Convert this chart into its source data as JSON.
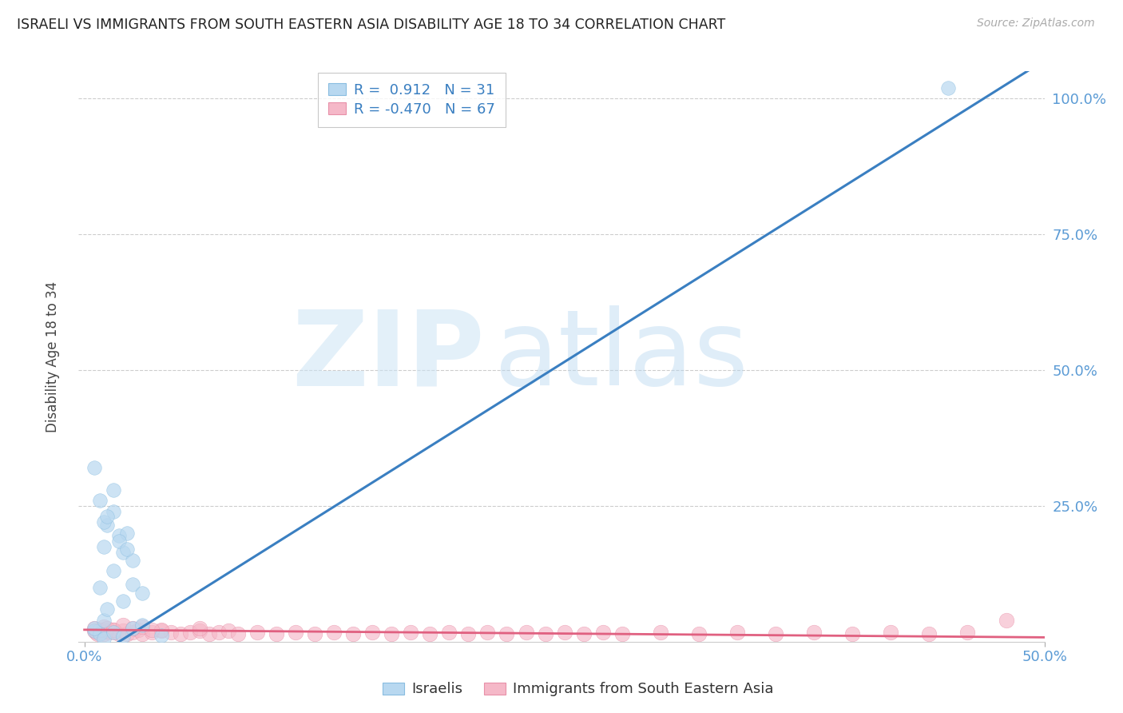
{
  "title": "ISRAELI VS IMMIGRANTS FROM SOUTH EASTERN ASIA DISABILITY AGE 18 TO 34 CORRELATION CHART",
  "source": "Source: ZipAtlas.com",
  "xlim": [
    0.0,
    0.5
  ],
  "ylim": [
    0.0,
    1.05
  ],
  "watermark_top": "ZIP",
  "watermark_bot": "atlas",
  "legend_items": [
    {
      "label": "Israelis",
      "color": "#b8d8f0",
      "edge": "#89bde0",
      "R": 0.912,
      "N": 31
    },
    {
      "label": "Immigrants from South Eastern Asia",
      "color": "#f5b8c8",
      "edge": "#e890a8",
      "R": -0.47,
      "N": 67
    }
  ],
  "israeli_x": [
    0.005,
    0.008,
    0.01,
    0.012,
    0.015,
    0.018,
    0.02,
    0.022,
    0.025,
    0.005,
    0.008,
    0.01,
    0.012,
    0.015,
    0.018,
    0.02,
    0.025,
    0.03,
    0.01,
    0.015,
    0.02,
    0.025,
    0.03,
    0.04,
    0.01,
    0.005,
    0.015,
    0.008,
    0.012,
    0.45,
    0.022
  ],
  "israeli_y": [
    0.02,
    0.015,
    0.175,
    0.215,
    0.24,
    0.195,
    0.165,
    0.2,
    0.15,
    0.025,
    0.1,
    0.04,
    0.06,
    0.13,
    0.185,
    0.075,
    0.105,
    0.09,
    0.005,
    0.018,
    0.01,
    0.025,
    0.03,
    0.012,
    0.22,
    0.32,
    0.28,
    0.26,
    0.23,
    1.02,
    0.17
  ],
  "immigrant_x": [
    0.005,
    0.006,
    0.007,
    0.008,
    0.009,
    0.01,
    0.012,
    0.013,
    0.015,
    0.016,
    0.018,
    0.02,
    0.022,
    0.025,
    0.028,
    0.03,
    0.035,
    0.04,
    0.045,
    0.05,
    0.055,
    0.06,
    0.065,
    0.07,
    0.075,
    0.08,
    0.09,
    0.1,
    0.11,
    0.12,
    0.13,
    0.14,
    0.15,
    0.16,
    0.17,
    0.18,
    0.19,
    0.2,
    0.21,
    0.22,
    0.23,
    0.24,
    0.25,
    0.26,
    0.27,
    0.28,
    0.3,
    0.32,
    0.34,
    0.36,
    0.38,
    0.4,
    0.42,
    0.44,
    0.46,
    0.005,
    0.008,
    0.01,
    0.012,
    0.015,
    0.02,
    0.025,
    0.03,
    0.04,
    0.06,
    0.48,
    0.035
  ],
  "immigrant_y": [
    0.02,
    0.018,
    0.015,
    0.022,
    0.018,
    0.015,
    0.02,
    0.018,
    0.022,
    0.018,
    0.015,
    0.02,
    0.015,
    0.018,
    0.022,
    0.015,
    0.018,
    0.02,
    0.018,
    0.015,
    0.018,
    0.02,
    0.015,
    0.018,
    0.02,
    0.015,
    0.018,
    0.015,
    0.018,
    0.015,
    0.018,
    0.015,
    0.018,
    0.015,
    0.018,
    0.015,
    0.018,
    0.015,
    0.018,
    0.015,
    0.018,
    0.015,
    0.018,
    0.015,
    0.018,
    0.015,
    0.018,
    0.015,
    0.018,
    0.015,
    0.018,
    0.015,
    0.018,
    0.015,
    0.018,
    0.025,
    0.022,
    0.028,
    0.025,
    0.022,
    0.03,
    0.025,
    0.028,
    0.022,
    0.025,
    0.04,
    0.022
  ],
  "blue_line_x": [
    0.0,
    0.5
  ],
  "blue_line_y": [
    -0.04,
    1.07
  ],
  "pink_line_x": [
    0.0,
    0.5
  ],
  "pink_line_y": [
    0.022,
    0.008
  ],
  "blue_line_color": "#3a7fc1",
  "pink_line_color": "#e06080",
  "grid_color": "#c8c8c8",
  "background_color": "#ffffff",
  "title_color": "#222222",
  "tick_color": "#5b9bd5",
  "ylabel": "Disability Age 18 to 34",
  "yticks": [
    0.25,
    0.5,
    0.75,
    1.0
  ],
  "ytick_labels": [
    "25.0%",
    "50.0%",
    "75.0%",
    "100.0%"
  ]
}
